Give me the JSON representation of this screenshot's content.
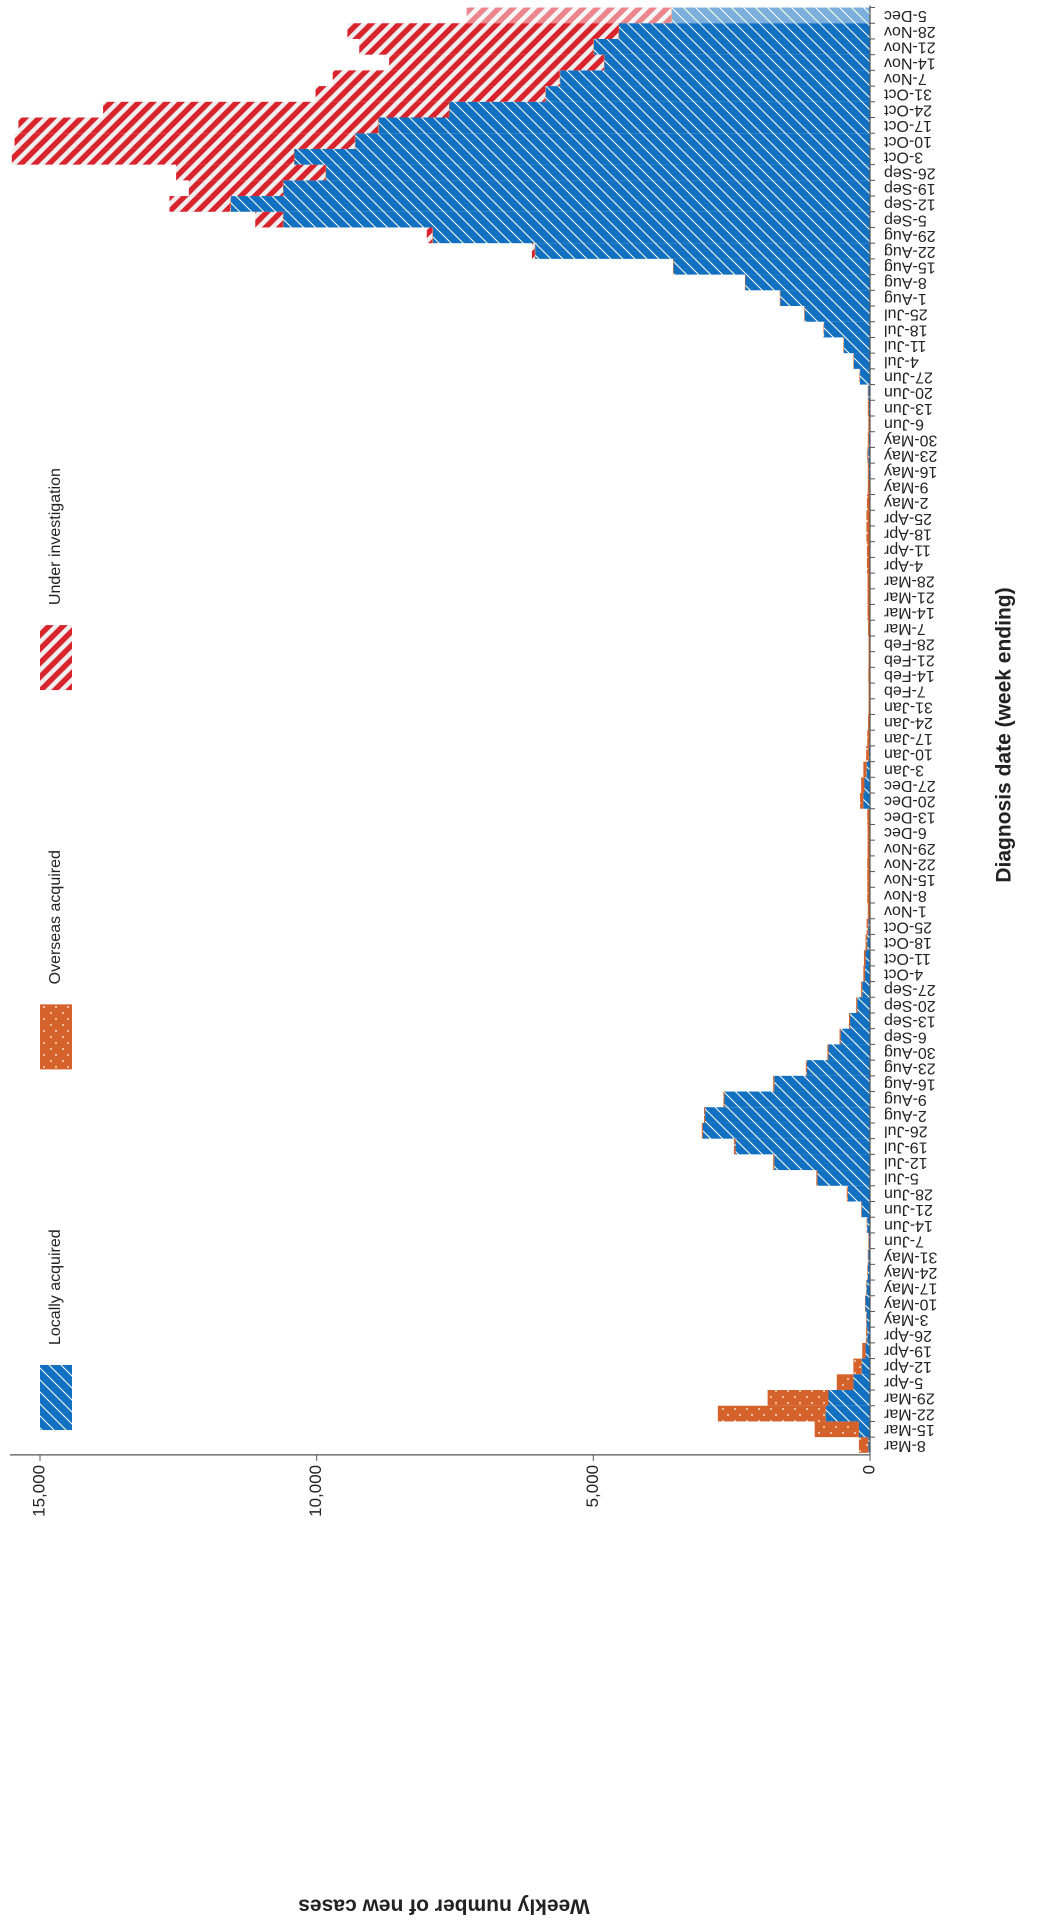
{
  "chart_data": {
    "type": "stacked_bar",
    "y_label": "Weekly number of new cases",
    "x_label": "Diagnosis date (week ending)",
    "categories": [
      "8-Mar",
      "15-Mar",
      "22-Mar",
      "29-Mar",
      "5-Apr",
      "12-Apr",
      "19-Apr",
      "26-Apr",
      "3-May",
      "10-May",
      "17-May",
      "24-May",
      "31-May",
      "7-Jun",
      "14-Jun",
      "21-Jun",
      "28-Jun",
      "5-Jul",
      "12-Jul",
      "19-Jul",
      "26-Jul",
      "2-Aug",
      "9-Aug",
      "16-Aug",
      "23-Aug",
      "30-Aug",
      "6-Sep",
      "13-Sep",
      "20-Sep",
      "27-Sep",
      "4-Oct",
      "11-Oct",
      "18-Oct",
      "25-Oct",
      "1-Nov",
      "8-Nov",
      "15-Nov",
      "22-Nov",
      "29-Nov",
      "6-Dec",
      "13-Dec",
      "20-Dec",
      "27-Dec",
      "3-Jan",
      "10-Jan",
      "17-Jan",
      "24-Jan",
      "31-Jan",
      "7-Feb",
      "14-Feb",
      "21-Feb",
      "28-Feb",
      "7-Mar",
      "14-Mar",
      "21-Mar",
      "28-Mar",
      "4-Apr",
      "11-Apr",
      "18-Apr",
      "25-Apr",
      "2-May",
      "9-May",
      "16-May",
      "23-May",
      "30-May",
      "6-Jun",
      "13-Jun",
      "20-Jun",
      "27-Jun",
      "4-Jul",
      "11-Jul",
      "18-Jul",
      "25-Jul",
      "1-Aug",
      "8-Aug",
      "15-Aug",
      "22-Aug",
      "29-Aug",
      "5-Sep",
      "12-Sep",
      "19-Sep",
      "26-Sep",
      "3-Oct",
      "10-Oct",
      "17-Oct",
      "24-Oct",
      "31-Oct",
      "7-Nov",
      "14-Nov",
      "21-Nov",
      "28-Nov",
      "5-Dec"
    ],
    "series": [
      {
        "name": "Locally acquired",
        "color": "#1170c0",
        "values": [
          30,
          200,
          800,
          750,
          300,
          150,
          80,
          50,
          60,
          80,
          60,
          40,
          30,
          20,
          50,
          150,
          400,
          950,
          1730,
          2430,
          3020,
          2980,
          2630,
          1730,
          1140,
          750,
          530,
          360,
          230,
          140,
          90,
          80,
          50,
          30,
          10,
          10,
          10,
          10,
          5,
          5,
          10,
          120,
          100,
          60,
          20,
          10,
          5,
          5,
          5,
          10,
          5,
          5,
          5,
          5,
          5,
          5,
          5,
          5,
          5,
          5,
          5,
          10,
          20,
          30,
          20,
          10,
          20,
          30,
          180,
          290,
          470,
          830,
          1180,
          1620,
          2250,
          3550,
          6050,
          7900,
          10600,
          11550,
          10600,
          9830,
          10400,
          9300,
          8880,
          7600,
          5860,
          5600,
          4800,
          4990,
          4535,
          3580
        ]
      },
      {
        "name": "Overseas acquired",
        "color": "#d4622a",
        "values": [
          170,
          800,
          1950,
          1100,
          300,
          150,
          60,
          20,
          10,
          10,
          10,
          10,
          10,
          10,
          10,
          10,
          20,
          20,
          20,
          30,
          20,
          20,
          20,
          20,
          20,
          20,
          20,
          20,
          20,
          20,
          30,
          30,
          30,
          30,
          30,
          40,
          40,
          40,
          40,
          40,
          40,
          60,
          60,
          60,
          50,
          40,
          30,
          20,
          20,
          20,
          20,
          20,
          30,
          40,
          40,
          40,
          50,
          50,
          60,
          60,
          50,
          30,
          20,
          20,
          20,
          20,
          20,
          10,
          10,
          10,
          10,
          10,
          10,
          10,
          10,
          10,
          10,
          10,
          10,
          10,
          10,
          10,
          10,
          10,
          10,
          10,
          10,
          10,
          10,
          10,
          10,
          10
        ]
      },
      {
        "name": "Under investigation",
        "color": "#d9232d",
        "values": [
          0,
          0,
          0,
          0,
          0,
          0,
          0,
          0,
          0,
          0,
          0,
          0,
          0,
          0,
          0,
          0,
          0,
          0,
          0,
          0,
          0,
          0,
          0,
          0,
          0,
          0,
          0,
          0,
          0,
          0,
          0,
          0,
          0,
          0,
          0,
          0,
          0,
          0,
          0,
          0,
          0,
          0,
          0,
          0,
          0,
          0,
          0,
          0,
          0,
          0,
          0,
          0,
          0,
          0,
          0,
          0,
          0,
          0,
          0,
          0,
          0,
          0,
          0,
          0,
          0,
          0,
          0,
          0,
          0,
          0,
          0,
          0,
          0,
          0,
          0,
          0,
          50,
          100,
          500,
          1100,
          1700,
          2700,
          5100,
          6150,
          6500,
          6250,
          4150,
          4100,
          3880,
          4230,
          4900,
          3700
        ]
      }
    ],
    "ylim": [
      0,
      15000
    ],
    "yticks": [
      0,
      {
        "value": 5000,
        "label": "5,000"
      },
      {
        "value": 10000,
        "label": "10,000"
      },
      {
        "value": 15000,
        "label": "15,000"
      }
    ]
  }
}
